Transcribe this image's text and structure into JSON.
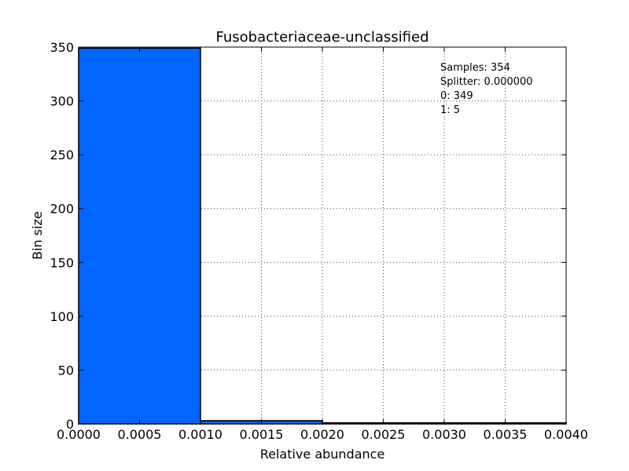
{
  "chart_data": {
    "type": "bar",
    "title": "Fusobacteriaceae-unclassified",
    "xlabel": "Relative abundance",
    "ylabel": "Bin size",
    "xlim": [
      0.0,
      0.004
    ],
    "ylim": [
      0,
      350
    ],
    "x_ticks": [
      "0.0000",
      "0.0005",
      "0.0010",
      "0.0015",
      "0.0020",
      "0.0025",
      "0.0030",
      "0.0035",
      "0.0040"
    ],
    "y_ticks": [
      "0",
      "50",
      "100",
      "150",
      "200",
      "250",
      "300",
      "350"
    ],
    "bins": [
      {
        "x0": 0.0,
        "x1": 0.001,
        "value": 349
      },
      {
        "x0": 0.001,
        "x1": 0.002,
        "value": 3
      },
      {
        "x0": 0.002,
        "x1": 0.003,
        "value": 1
      },
      {
        "x0": 0.003,
        "x1": 0.004,
        "value": 1
      }
    ],
    "annotations": [
      "Samples: 354",
      "Splitter: 0.000000",
      "0: 349",
      "1: 5"
    ],
    "grid": true,
    "bar_color": "#0066ff"
  }
}
